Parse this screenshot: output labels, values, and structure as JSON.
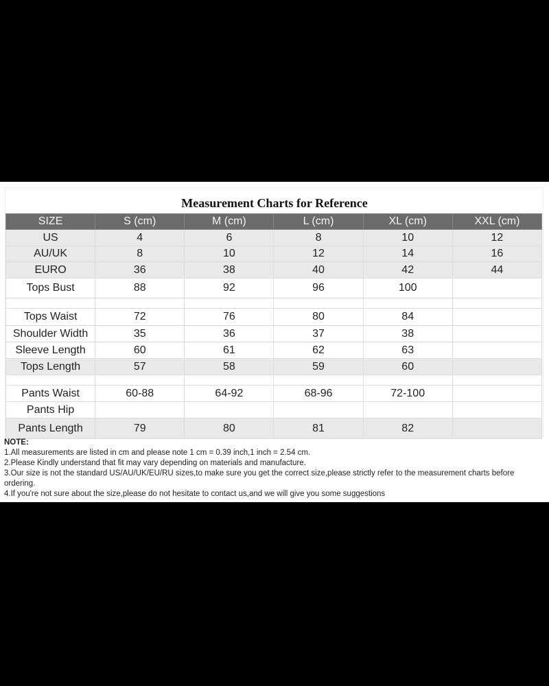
{
  "title": "Measurement Charts for Reference",
  "table": {
    "headers": [
      "SIZE",
      "S (cm)",
      "M (cm)",
      "L (cm)",
      "XL (cm)",
      "XXL (cm)"
    ],
    "rows": [
      {
        "cells": [
          "US",
          "4",
          "6",
          "8",
          "10",
          "12"
        ],
        "shade": "gray"
      },
      {
        "cells": [
          "AU/UK",
          "8",
          "10",
          "12",
          "14",
          "16"
        ],
        "shade": "gray"
      },
      {
        "cells": [
          "EURO",
          "36",
          "38",
          "40",
          "42",
          "44"
        ],
        "shade": "gray"
      },
      {
        "cells": [
          "Tops Bust",
          "88",
          "92",
          "96",
          "100",
          ""
        ],
        "shade": "white"
      },
      {
        "cells": [
          "",
          "",
          "",
          "",
          "",
          ""
        ],
        "shade": "blank"
      },
      {
        "cells": [
          "Tops Waist",
          "72",
          "76",
          "80",
          "84",
          ""
        ],
        "shade": "white"
      },
      {
        "cells": [
          "Shoulder Width",
          "35",
          "36",
          "37",
          "38",
          ""
        ],
        "shade": "white"
      },
      {
        "cells": [
          "Sleeve Length",
          "60",
          "61",
          "62",
          "63",
          ""
        ],
        "shade": "white"
      },
      {
        "cells": [
          "Tops Length",
          "57",
          "58",
          "59",
          "60",
          ""
        ],
        "shade": "gray"
      },
      {
        "cells": [
          "",
          "",
          "",
          "",
          "",
          ""
        ],
        "shade": "blank"
      },
      {
        "cells": [
          "Pants Waist",
          "60-88",
          "64-92",
          "68-96",
          "72-100",
          ""
        ],
        "shade": "white"
      },
      {
        "cells": [
          "Pants Hip",
          "",
          "",
          "",
          "",
          ""
        ],
        "shade": "white"
      },
      {
        "cells": [
          "Pants Length",
          "79",
          "80",
          "81",
          "82",
          ""
        ],
        "shade": "gray"
      }
    ]
  },
  "notes": {
    "heading": "NOTE:",
    "items": [
      "1.All measurements are listed in cm and please note 1 cm = 0.39 inch,1 inch = 2.54 cm.",
      "2.Please Kindly understand that fit may vary depending on materials and manufacture.",
      "3.Our size is not the standard US/AU/UK/EU/RU sizes,to make sure you get the correct size,please strictly refer to the measurement charts before ordering.",
      "4.If you're not sure about the size,please do not hesitate to contact us,and we will give you some suggestions"
    ]
  },
  "colors": {
    "header_bg": "#6b6b6b",
    "gray_row": "#e9e9e9",
    "background": "#000000"
  }
}
